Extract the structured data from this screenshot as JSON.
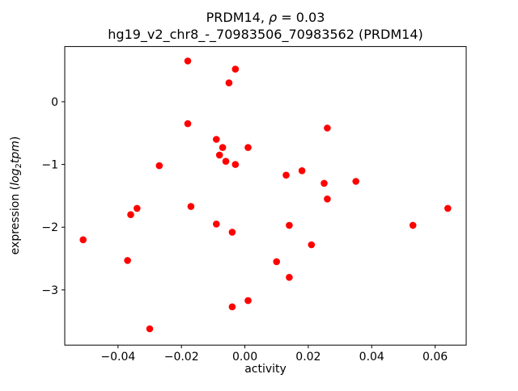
{
  "chart_data": {
    "type": "scatter",
    "title": {
      "prefix": "PRDM14, ",
      "rho": "ρ",
      "suffix": " = 0.03"
    },
    "subtitle": "hg19_v2_chr8_-_70983506_70983562 (PRDM14)",
    "xlabel": "activity",
    "ylabel": {
      "prefix": "expression (",
      "log": "log",
      "sub": "2",
      "var": "tpm",
      "close": ")"
    },
    "marker_color": "#ff0000",
    "axis_color": "#000000",
    "xlim": [
      -0.0568,
      0.0698
    ],
    "ylim": [
      -3.88,
      0.88
    ],
    "xticks": [
      -0.04,
      -0.02,
      0.0,
      0.02,
      0.04,
      0.06
    ],
    "xtick_labels": [
      "−0.04",
      "−0.02",
      "0.00",
      "0.02",
      "0.04",
      "0.06"
    ],
    "yticks": [
      0,
      -1,
      -2,
      -3
    ],
    "ytick_labels": [
      "0",
      "−1",
      "−2",
      "−3"
    ],
    "grid": false,
    "legend": "none",
    "points": {
      "x": [
        -0.018,
        -0.005,
        -0.003,
        -0.018,
        0.026,
        -0.009,
        -0.007,
        0.001,
        -0.008,
        -0.006,
        -0.003,
        -0.027,
        0.013,
        0.018,
        0.025,
        0.035,
        0.026,
        -0.017,
        -0.034,
        -0.036,
        -0.009,
        0.014,
        0.053,
        0.064,
        -0.004,
        -0.051,
        0.021,
        -0.037,
        0.01,
        0.014,
        0.001,
        -0.004,
        -0.03
      ],
      "y": [
        0.65,
        0.3,
        0.52,
        -0.35,
        -0.42,
        -0.6,
        -0.73,
        -0.73,
        -0.85,
        -0.95,
        -1.0,
        -1.02,
        -1.17,
        -1.1,
        -1.3,
        -1.27,
        -1.55,
        -1.67,
        -1.7,
        -1.8,
        -1.95,
        -1.97,
        -1.97,
        -1.7,
        -2.08,
        -2.2,
        -2.28,
        -2.53,
        -2.55,
        -2.8,
        -3.17,
        -3.27,
        -3.62
      ]
    }
  }
}
